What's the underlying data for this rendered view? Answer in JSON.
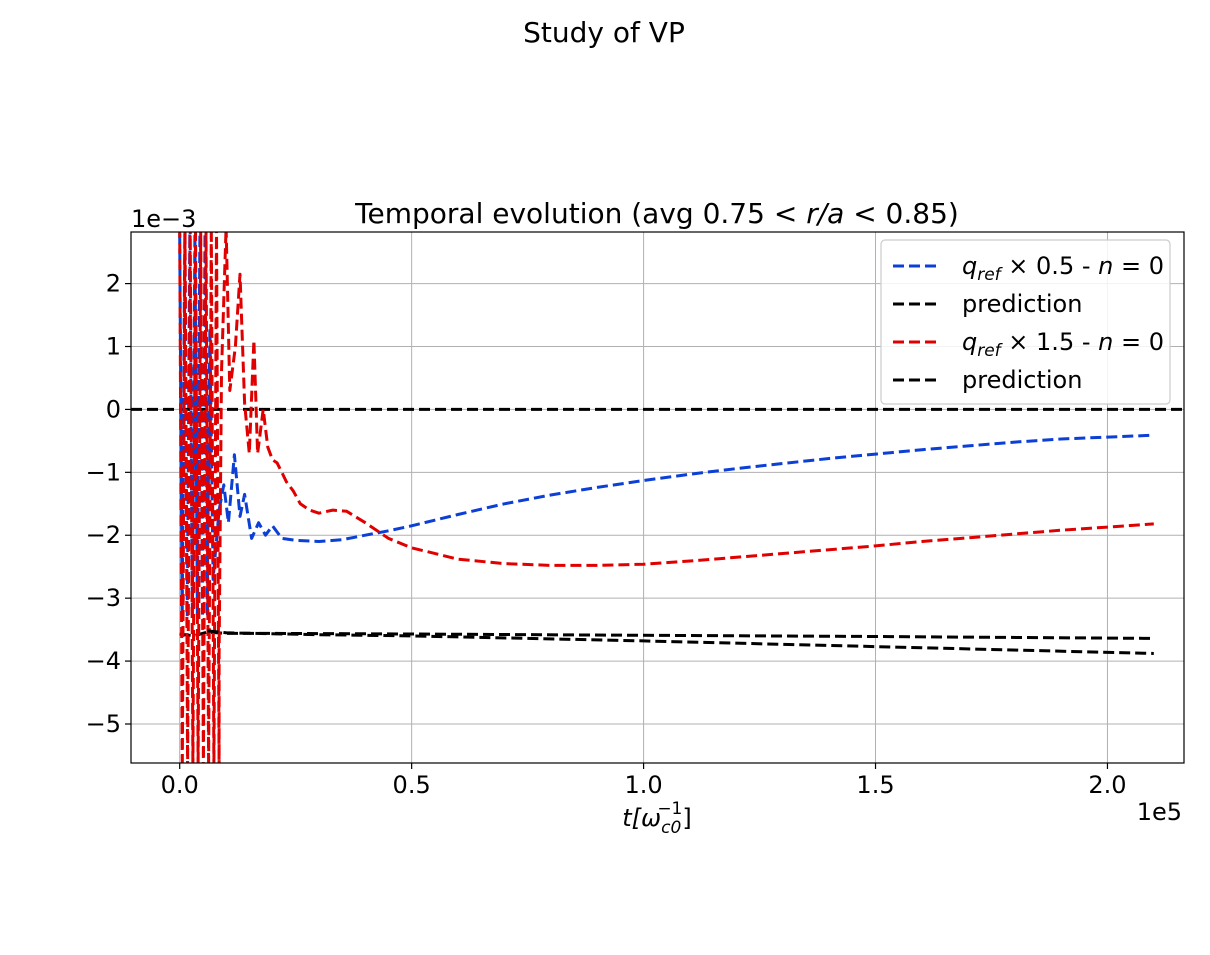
{
  "figure": {
    "suptitle": "Study of VP"
  },
  "chart_data": {
    "type": "line",
    "title": "Temporal evolution (avg 0.75 < r/a < 0.85)",
    "title_parts": {
      "pre": "Temporal evolution (avg 0.75 < ",
      "math": "r/a",
      "post": " < 0.85)"
    },
    "xlabel": "t[ω_c0^-1]",
    "xlabel_parts": {
      "pre": "t[",
      "base": "ω",
      "sub": "c0",
      "sup": "−1",
      "post": "]"
    },
    "x_offset_label": "1e5",
    "y_offset_label": "1e−3",
    "x_scale": 100000,
    "y_scale": 0.001,
    "xlim": [
      -0.105,
      2.165
    ],
    "ylim": [
      -5.62,
      2.82
    ],
    "xticks": [
      0.0,
      0.5,
      1.0,
      1.5,
      2.0
    ],
    "xtick_labels": [
      "0.0",
      "0.5",
      "1.0",
      "1.5",
      "2.0"
    ],
    "yticks": [
      -5,
      -4,
      -3,
      -2,
      -1,
      0,
      1,
      2
    ],
    "ytick_labels": [
      "−5",
      "−4",
      "−3",
      "−2",
      "−1",
      "0",
      "1",
      "2"
    ],
    "grid": true,
    "legend_position": "top-right",
    "zero_line": {
      "y": 0,
      "color": "#000000",
      "style": "dashed"
    },
    "series": [
      {
        "name": "q_ref × 0.5 - n = 0",
        "legend": {
          "base": "q",
          "sub": "ref",
          "rest": " × 0.5 - ",
          "var": "n",
          "tail": " = 0"
        },
        "color": "#0b3fd6",
        "style": "dashed",
        "transient_range": [
          -3.3,
          2.8
        ],
        "points": [
          [
            0.06,
            -2.6
          ],
          [
            0.065,
            1.3
          ],
          [
            0.072,
            -2.7
          ],
          [
            0.085,
            -1.6
          ],
          [
            0.095,
            -1.2
          ],
          [
            0.105,
            -1.8
          ],
          [
            0.118,
            -0.72
          ],
          [
            0.13,
            -1.7
          ],
          [
            0.14,
            -1.35
          ],
          [
            0.155,
            -2.05
          ],
          [
            0.17,
            -1.8
          ],
          [
            0.185,
            -2.0
          ],
          [
            0.2,
            -1.85
          ],
          [
            0.22,
            -2.05
          ],
          [
            0.25,
            -2.08
          ],
          [
            0.3,
            -2.1
          ],
          [
            0.35,
            -2.07
          ],
          [
            0.4,
            -2.0
          ],
          [
            0.45,
            -1.93
          ],
          [
            0.5,
            -1.85
          ],
          [
            0.6,
            -1.67
          ],
          [
            0.7,
            -1.5
          ],
          [
            0.8,
            -1.36
          ],
          [
            0.9,
            -1.24
          ],
          [
            1.0,
            -1.13
          ],
          [
            1.1,
            -1.03
          ],
          [
            1.2,
            -0.94
          ],
          [
            1.3,
            -0.86
          ],
          [
            1.4,
            -0.78
          ],
          [
            1.5,
            -0.71
          ],
          [
            1.6,
            -0.64
          ],
          [
            1.7,
            -0.58
          ],
          [
            1.8,
            -0.52
          ],
          [
            1.9,
            -0.47
          ],
          [
            2.0,
            -0.44
          ],
          [
            2.1,
            -0.41
          ]
        ]
      },
      {
        "name": "prediction",
        "legend": {
          "text": "prediction"
        },
        "color": "#000000",
        "style": "dashed",
        "points": [
          [
            0.0,
            -3.57
          ],
          [
            0.03,
            -3.6
          ],
          [
            0.06,
            -3.54
          ],
          [
            0.1,
            -3.56
          ],
          [
            0.2,
            -3.56
          ],
          [
            0.5,
            -3.57
          ],
          [
            1.0,
            -3.59
          ],
          [
            1.5,
            -3.61
          ],
          [
            2.1,
            -3.64
          ]
        ]
      },
      {
        "name": "q_ref × 1.5 - n = 0",
        "legend": {
          "base": "q",
          "sub": "ref",
          "rest": " × 1.5 - ",
          "var": "n",
          "tail": " = 0"
        },
        "color": "#e00000",
        "style": "dashed",
        "transient_range": [
          -5.7,
          2.9
        ],
        "points": [
          [
            0.085,
            -3.9
          ],
          [
            0.09,
            0.6
          ],
          [
            0.1,
            2.9
          ],
          [
            0.108,
            0.3
          ],
          [
            0.12,
            1.0
          ],
          [
            0.13,
            2.15
          ],
          [
            0.14,
            0.1
          ],
          [
            0.15,
            -0.7
          ],
          [
            0.16,
            1.1
          ],
          [
            0.168,
            -0.7
          ],
          [
            0.18,
            0.0
          ],
          [
            0.19,
            -0.6
          ],
          [
            0.2,
            -0.8
          ],
          [
            0.21,
            -0.85
          ],
          [
            0.22,
            -1.0
          ],
          [
            0.23,
            -1.15
          ],
          [
            0.245,
            -1.3
          ],
          [
            0.26,
            -1.5
          ],
          [
            0.28,
            -1.6
          ],
          [
            0.3,
            -1.65
          ],
          [
            0.33,
            -1.6
          ],
          [
            0.36,
            -1.62
          ],
          [
            0.4,
            -1.8
          ],
          [
            0.45,
            -2.05
          ],
          [
            0.5,
            -2.2
          ],
          [
            0.6,
            -2.38
          ],
          [
            0.7,
            -2.45
          ],
          [
            0.8,
            -2.48
          ],
          [
            0.9,
            -2.48
          ],
          [
            1.0,
            -2.46
          ],
          [
            1.1,
            -2.41
          ],
          [
            1.2,
            -2.35
          ],
          [
            1.3,
            -2.29
          ],
          [
            1.4,
            -2.23
          ],
          [
            1.5,
            -2.17
          ],
          [
            1.6,
            -2.1
          ],
          [
            1.7,
            -2.04
          ],
          [
            1.8,
            -1.98
          ],
          [
            1.9,
            -1.92
          ],
          [
            2.0,
            -1.87
          ],
          [
            2.1,
            -1.82
          ]
        ]
      },
      {
        "name": "prediction",
        "legend": {
          "text": "prediction"
        },
        "color": "#000000",
        "style": "dashed",
        "points": [
          [
            0.06,
            -3.52
          ],
          [
            0.1,
            -3.55
          ],
          [
            0.3,
            -3.58
          ],
          [
            0.5,
            -3.6
          ],
          [
            1.0,
            -3.68
          ],
          [
            1.5,
            -3.77
          ],
          [
            2.1,
            -3.88
          ]
        ]
      }
    ]
  }
}
